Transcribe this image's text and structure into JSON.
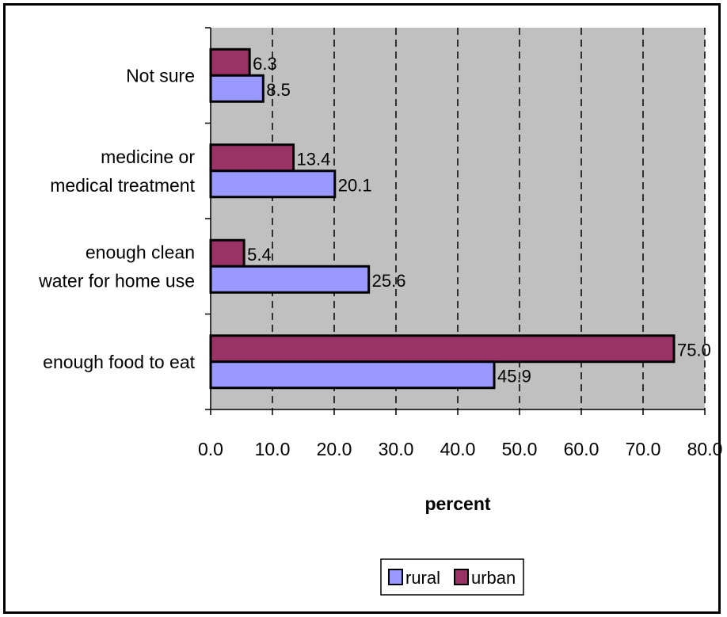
{
  "chart_data": {
    "type": "bar",
    "orientation": "horizontal",
    "categories": [
      [
        "Not sure"
      ],
      [
        "medicine or",
        "medical treatment"
      ],
      [
        "enough clean",
        "water for home use"
      ],
      [
        "enough food to eat"
      ]
    ],
    "series": [
      {
        "name": "urban",
        "values": [
          6.3,
          13.4,
          5.4,
          75.0
        ],
        "labels": [
          "6.3",
          "13.4",
          "5.4",
          "75.0"
        ],
        "color": "#993366"
      },
      {
        "name": "rural",
        "values": [
          8.5,
          20.1,
          25.6,
          45.9
        ],
        "labels": [
          "8.5",
          "20.1",
          "25.6",
          "45.9"
        ],
        "color": "#9999FF"
      }
    ],
    "xlabel": "percent",
    "xlim": [
      0,
      80
    ],
    "xticks": [
      "0.0",
      "10.0",
      "20.0",
      "30.0",
      "40.0",
      "50.0",
      "60.0",
      "70.0",
      "80.0"
    ],
    "grid": "vertical dashed",
    "plot_background": "#C0C0C0",
    "legend": {
      "position": "bottom",
      "entries": [
        "rural",
        "urban"
      ]
    }
  }
}
